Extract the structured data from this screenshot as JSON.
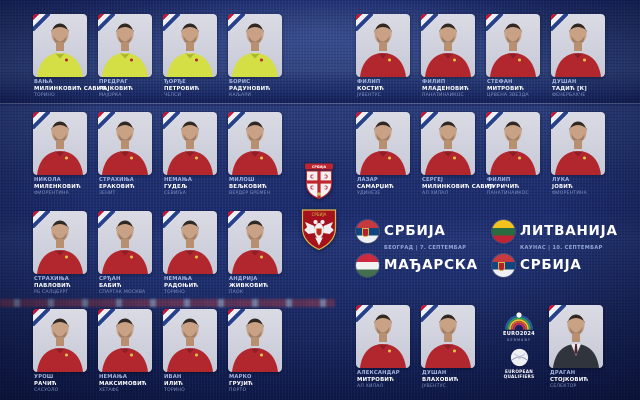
{
  "colors": {
    "background_navy": "#1a2a6e",
    "card_photo_bg": "#d5d6e0",
    "jersey_red": "#b2262e",
    "jersey_goalkeeper_yellow": "#d4de45",
    "ribbon_red": "#c8102e",
    "ribbon_blue": "#27408b",
    "name_first_text": "#a9b8e4",
    "name_last_text": "#ffffff",
    "club_text": "#7f90c2"
  },
  "crests": {
    "fss_banner_text": "СРБИЈА",
    "eagle_crest_text": "СРБИЈА"
  },
  "squad": {
    "left_block": [
      {
        "first": "ВАЊА",
        "last": "МИЛИНКОВИЋ САВИЋ",
        "club": "ТОРИНО",
        "kit": "gk"
      },
      {
        "first": "ПРЕДРАГ",
        "last": "РАЈКОВИЋ",
        "club": "МАЈОРКА",
        "kit": "gk"
      },
      {
        "first": "ЂОРЂЕ",
        "last": "ПЕТРОВИЋ",
        "club": "ЧЕЛСИ",
        "kit": "gk"
      },
      {
        "first": "БОРИС",
        "last": "РАДУНОВИЋ",
        "club": "КАЉАРИ",
        "kit": "gk"
      },
      {
        "first": "НИКОЛА",
        "last": "МИЛЕНКОВИЋ",
        "club": "ФИОРЕНТИНА",
        "kit": "field"
      },
      {
        "first": "СТРАХИЊА",
        "last": "ЕРАКОВИЋ",
        "club": "ЗЕНИТ",
        "kit": "field"
      },
      {
        "first": "НЕМАЊА",
        "last": "ГУДЕЉ",
        "club": "СЕВИЉА",
        "kit": "field"
      },
      {
        "first": "МИЛОШ",
        "last": "ВЕЉКОВИЋ",
        "club": "ВЕРДЕР БРЕМЕН",
        "kit": "field"
      },
      {
        "first": "СТРАХИЊА",
        "last": "ПАВЛОВИЋ",
        "club": "РБ САЛЦБУРГ",
        "kit": "field"
      },
      {
        "first": "СРЂАН",
        "last": "БАБИЋ",
        "club": "СПАРТАК МОСКВА",
        "kit": "field"
      },
      {
        "first": "НЕМАЊА",
        "last": "РАДОЊИЋ",
        "club": "ТОРИНО",
        "kit": "field"
      },
      {
        "first": "АНДРИЈА",
        "last": "ЖИВКОВИЋ",
        "club": "ПАОК",
        "kit": "field"
      },
      {
        "first": "УРОШ",
        "last": "РАЧИЋ",
        "club": "САСУОЛО",
        "kit": "field"
      },
      {
        "first": "НЕМАЊА",
        "last": "МАКСИМОВИЋ",
        "club": "ХЕТАФЕ",
        "kit": "field"
      },
      {
        "first": "ИВАН",
        "last": "ИЛИЋ",
        "club": "ТОРИНО",
        "kit": "field"
      },
      {
        "first": "МАРКО",
        "last": "ГРУЈИЋ",
        "club": "ПОРТО",
        "kit": "field"
      }
    ],
    "right_block": [
      {
        "first": "ФИЛИП",
        "last": "КОСТИЋ",
        "club": "ЈУВЕНТУС",
        "kit": "field"
      },
      {
        "first": "ФИЛИП",
        "last": "МЛАДЕНОВИЋ",
        "club": "ПАНАТИНАИКОС",
        "kit": "field"
      },
      {
        "first": "СТЕФАН",
        "last": "МИТРОВИЋ",
        "club": "ЦРВЕНА ЗВЕЗДА",
        "kit": "field"
      },
      {
        "first": "ДУШАН",
        "last": "ТАДИЋ [К]",
        "club": "ФЕНЕРБАХЧЕ",
        "kit": "field"
      },
      {
        "first": "ЛАЗАР",
        "last": "САМАРЏИЋ",
        "club": "УДИНЕЗЕ",
        "kit": "field"
      },
      {
        "first": "СЕРГЕЈ",
        "last": "МИЛИНКОВИЋ САВИЋ",
        "club": "АЛ ХИЛАЛ",
        "kit": "field"
      },
      {
        "first": "ФИЛИП",
        "last": "ЂУРИЧИЋ",
        "club": "ПАНАТИНАИКОС",
        "kit": "field"
      },
      {
        "first": "ЛУКА",
        "last": "ЈОВИЋ",
        "club": "ФИОРЕНТИНА",
        "kit": "field"
      }
    ],
    "bottom_right": [
      {
        "first": "АЛЕКСАНДАР",
        "last": "МИТРОВИЋ",
        "club": "АЛ ХИЛАЛ",
        "kit": "field"
      },
      {
        "first": "ДУШАН",
        "last": "ВЛАХОВИЋ",
        "club": "ЈУВЕНТУС",
        "kit": "field"
      }
    ],
    "coach": [
      {
        "first": "ДРАГАН",
        "last": "СТОЈКОВИЋ",
        "club": "СЕЛЕКТОР",
        "kit": "suit"
      }
    ]
  },
  "matches": [
    {
      "home_team": "СРБИЈА",
      "home_flag": "serbia",
      "venue_date": "БЕОГРАД | 7. СЕПТЕМБАР",
      "away_team": "МАЂАРСКА",
      "away_flag": "hungary"
    },
    {
      "home_team": "ЛИТВАНИЈА",
      "home_flag": "lithuania",
      "venue_date": "КАУНАС | 10. СЕПТЕМБАР",
      "away_team": "СРБИЈА",
      "away_flag": "serbia"
    }
  ],
  "tournament": {
    "euro_logo_text": "EURO2024",
    "euro_logo_sub": "GERMANY",
    "qualifiers_text": "EUROPEAN QUALIFIERS"
  }
}
